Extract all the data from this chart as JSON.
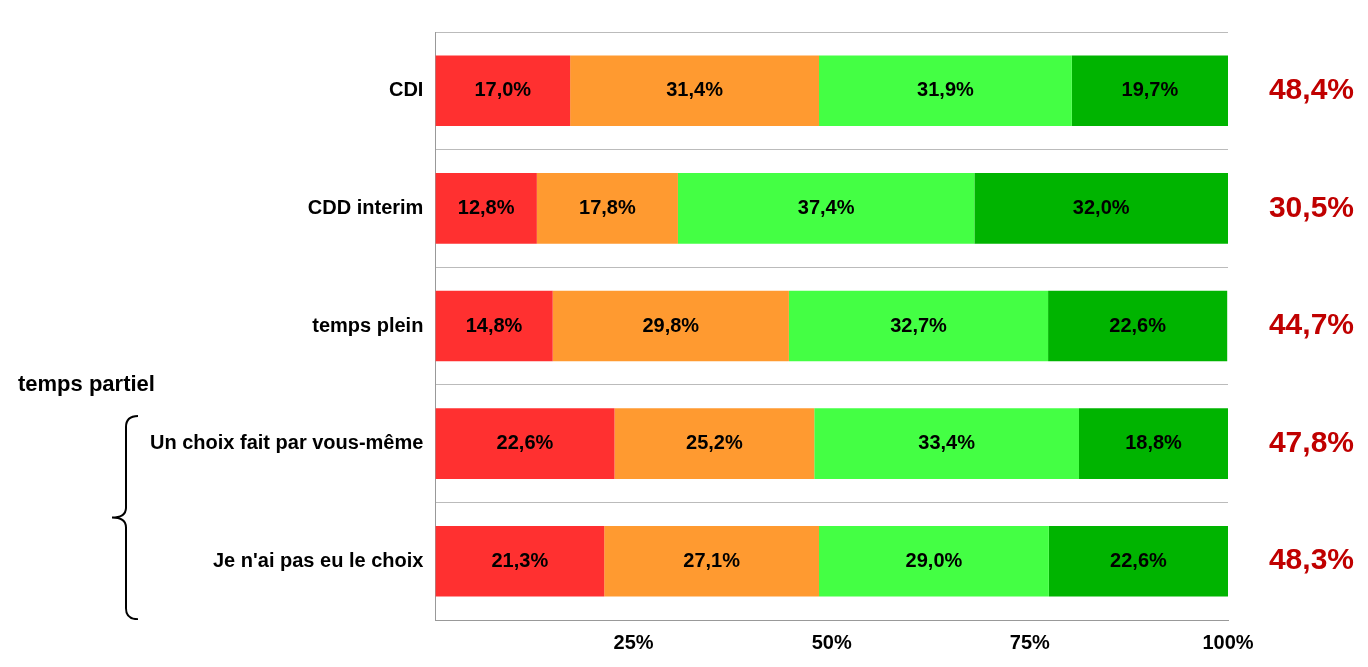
{
  "chart_data": {
    "type": "bar",
    "orientation": "horizontal",
    "stacked": true,
    "categories": [
      "CDI",
      "CDD interim",
      "temps plein",
      "Un choix fait par vous-même",
      "Je n'ai pas eu le choix"
    ],
    "series": [
      {
        "color": "#ff3030",
        "values": [
          17.0,
          12.8,
          14.8,
          22.6,
          21.3
        ],
        "value_labels": [
          "17,0%",
          "12,8%",
          "14,8%",
          "22,6%",
          "21,3%"
        ]
      },
      {
        "color": "#ff9a30",
        "values": [
          31.4,
          17.8,
          29.8,
          25.2,
          27.1
        ],
        "value_labels": [
          "31,4%",
          "17,8%",
          "29,8%",
          "25,2%",
          "27,1%"
        ]
      },
      {
        "color": "#44ff44",
        "values": [
          31.9,
          37.4,
          32.7,
          33.4,
          29.0
        ],
        "value_labels": [
          "31,9%",
          "37,4%",
          "32,7%",
          "33,4%",
          "29,0%"
        ]
      },
      {
        "color": "#00b400",
        "values": [
          19.7,
          32.0,
          22.6,
          18.8,
          22.6
        ],
        "value_labels": [
          "19,7%",
          "32,0%",
          "22,6%",
          "18,8%",
          "22,6%"
        ]
      }
    ],
    "xlim": [
      0,
      100
    ],
    "xticks": [
      {
        "value": 25,
        "label": "25%"
      },
      {
        "value": 50,
        "label": "50%"
      },
      {
        "value": 75,
        "label": "75%"
      },
      {
        "value": 100,
        "label": "100%"
      }
    ],
    "grid": "y",
    "annotations": [
      "temps partiel",
      "48,4%",
      "30,5%",
      "44,7%",
      "47,8%",
      "48,3%"
    ]
  }
}
